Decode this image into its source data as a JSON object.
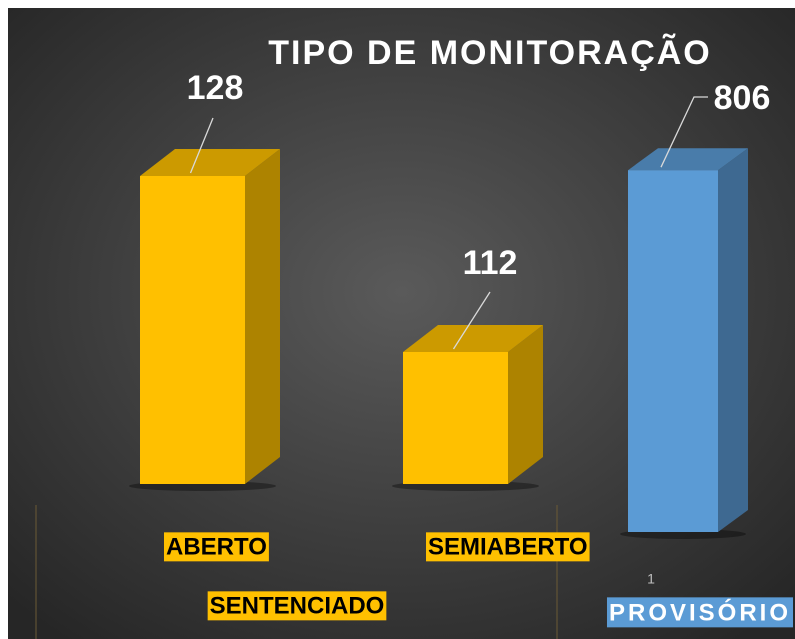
{
  "chart_data": [
    {
      "type": "bar",
      "title": "TIPO DE MONITORAÇÃO",
      "group_label": "SENTENCIADO",
      "categories": [
        "ABERTO",
        "SEMIABERTO"
      ],
      "values": [
        128,
        112
      ],
      "color": "#ffc000",
      "ylim": [
        100,
        135
      ]
    },
    {
      "type": "bar",
      "group_label": "PROVISÓRIO",
      "categories": [
        "1"
      ],
      "values": [
        806
      ],
      "color": "#5b9bd5",
      "ylim": [
        0,
        900
      ]
    }
  ]
}
